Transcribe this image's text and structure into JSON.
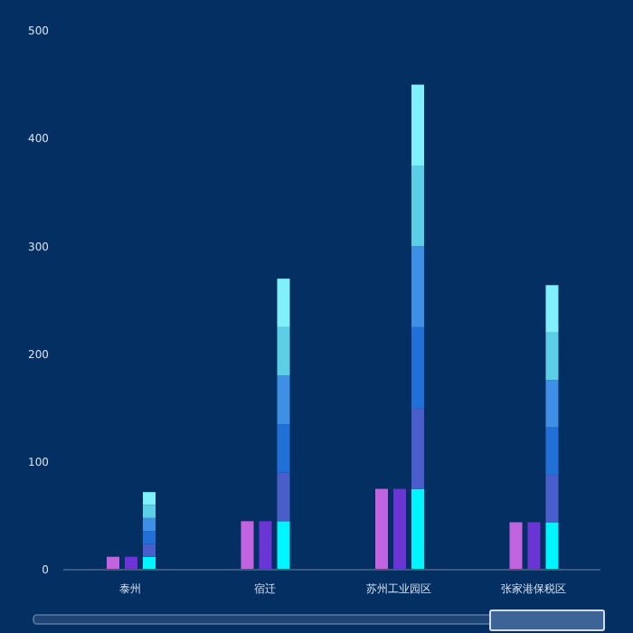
{
  "chart_data": {
    "type": "bar",
    "categories": [
      "泰州",
      "宿迁",
      "苏州工业园区",
      "张家港保税区"
    ],
    "series": [
      {
        "color": "#c264e0",
        "values": [
          12,
          45,
          75,
          44
        ]
      },
      {
        "color": "#6a35d4",
        "values": [
          12,
          45,
          75,
          44
        ]
      },
      {
        "color": "#00f6ff",
        "values": [
          12,
          45,
          75,
          44
        ],
        "base": [
          0,
          0,
          0,
          0
        ]
      },
      {
        "color": "#4a5ecb",
        "values": [
          12,
          45,
          75,
          44
        ],
        "base": [
          12,
          45,
          75,
          44
        ]
      },
      {
        "color": "#2170d8",
        "values": [
          12,
          45,
          75,
          44
        ],
        "base": [
          24,
          90,
          150,
          88
        ]
      },
      {
        "color": "#3f8fe6",
        "values": [
          12,
          45,
          75,
          44
        ],
        "base": [
          36,
          135,
          225,
          132
        ]
      },
      {
        "color": "#5ccee6",
        "values": [
          12,
          45,
          75,
          44
        ],
        "base": [
          48,
          180,
          300,
          176
        ]
      },
      {
        "color": "#80f0fa",
        "values": [
          12,
          45,
          75,
          44
        ],
        "base": [
          60,
          225,
          375,
          220
        ]
      }
    ],
    "ylim": [
      0,
      500
    ],
    "yticks": [
      0,
      100,
      200,
      300,
      400,
      500
    ]
  }
}
